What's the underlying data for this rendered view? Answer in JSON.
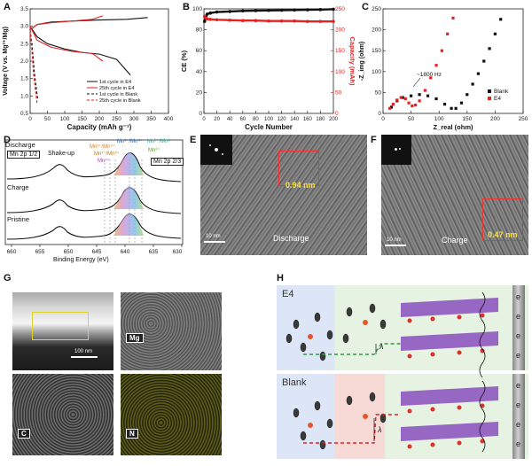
{
  "panels": {
    "A": {
      "letter": "A",
      "ylabel": "Voltage (V vs. Mg²⁺/Mg)",
      "xlabel": "Capacity (mAh g⁻¹)",
      "legend": [
        "1st cycle in E4",
        "25th cycle in E4",
        "1st cycle in Blank",
        "25th cycle in Blank"
      ]
    },
    "B": {
      "letter": "B",
      "ylabel_left": "CE (%)",
      "ylabel_right": "Capacity (mAh)",
      "xlabel": "Cycle Number"
    },
    "C": {
      "letter": "C",
      "ylabel": "-Z_img (ohm)",
      "xlabel": "Z_real (ohm)",
      "annotation": "~1800 Hz",
      "legend": [
        "Blank",
        "E4"
      ]
    },
    "D": {
      "letter": "D",
      "xlabel": "Binding Energy (eV)",
      "rows": [
        "Discharge",
        "Charge",
        "Pristine"
      ],
      "tag_left": "Mn 2p 1/2",
      "tag_right": "Mn 2p 2/3",
      "shakeup": "Shake-up",
      "peak_labels": [
        "Mn³⁺/Mn⁴⁺",
        "Mn²⁺/Mn³⁺",
        "Mn⁴⁺",
        "Mn³⁺/Mn⁴⁺",
        "Mn²⁺/Mn³⁺",
        "Mn²⁺"
      ]
    },
    "E": {
      "letter": "E",
      "d_spacing": "0.94 nm",
      "scale": "10 nm",
      "label": "Discharge"
    },
    "F": {
      "letter": "F",
      "d_spacing": "0.47 nm",
      "scale": "10 nm",
      "label": "Charge"
    },
    "G": {
      "letter": "G",
      "scale": "100 nm",
      "maps": [
        "Mg",
        "C",
        "N"
      ]
    },
    "H": {
      "letter": "H",
      "rows": [
        "E4",
        "Blank"
      ],
      "lambda": "λ",
      "electrode_label": "e"
    }
  },
  "colors": {
    "e4": "#e32222",
    "blank": "#111111",
    "accent_yellow": "#e0d22c"
  },
  "chart_data": [
    {
      "type": "line",
      "title": "",
      "xlabel": "Capacity (mAh g⁻¹)",
      "ylabel": "Voltage (V vs. Mg²⁺/Mg)",
      "xlim": [
        0,
        400
      ],
      "ylim": [
        0.5,
        3.5
      ],
      "xticks": [
        0,
        50,
        100,
        150,
        200,
        250,
        300,
        350,
        400
      ],
      "yticks": [
        0.5,
        1.0,
        1.5,
        2.0,
        2.5,
        3.0,
        3.5
      ],
      "series": [
        {
          "name": "1st cycle in E4",
          "color": "#111111",
          "style": "solid",
          "x": [
            0,
            20,
            50,
            100,
            150,
            200,
            250,
            290
          ],
          "y": [
            3.0,
            2.7,
            2.5,
            2.35,
            2.25,
            2.2,
            2.05,
            1.6
          ]
        },
        {
          "name": "1st cycle in E4 (charge)",
          "color": "#111111",
          "style": "solid",
          "x": [
            0,
            20,
            60,
            120,
            200,
            280,
            340
          ],
          "y": [
            2.9,
            3.05,
            3.12,
            3.15,
            3.18,
            3.2,
            3.25
          ]
        },
        {
          "name": "25th cycle in E4",
          "color": "#e32222",
          "style": "solid",
          "x": [
            0,
            20,
            60,
            120,
            180,
            210
          ],
          "y": [
            3.0,
            2.6,
            2.4,
            2.28,
            2.22,
            2.0
          ]
        },
        {
          "name": "25th cycle in E4 (charge)",
          "color": "#e32222",
          "style": "solid",
          "x": [
            0,
            20,
            60,
            120,
            180,
            210
          ],
          "y": [
            2.9,
            3.05,
            3.1,
            3.15,
            3.2,
            3.3
          ]
        },
        {
          "name": "1st cycle in Blank",
          "color": "#111111",
          "style": "dashed",
          "x": [
            0,
            6,
            12,
            18,
            22
          ],
          "y": [
            2.9,
            2.4,
            1.7,
            1.2,
            0.9
          ]
        },
        {
          "name": "25th cycle in Blank",
          "color": "#e32222",
          "style": "dashed",
          "x": [
            0,
            5,
            10,
            16,
            20
          ],
          "y": [
            2.9,
            2.3,
            1.6,
            1.1,
            0.8
          ]
        }
      ]
    },
    {
      "type": "scatter",
      "title": "",
      "xlabel": "Cycle Number",
      "ylabel_left": "CE (%)",
      "ylabel_right": "Capacity (mAh)",
      "xlim": [
        0,
        200
      ],
      "ylim_left": [
        0,
        100
      ],
      "ylim_right": [
        0,
        250
      ],
      "xticks": [
        0,
        20,
        40,
        60,
        80,
        100,
        120,
        140,
        160,
        180,
        200
      ],
      "yticks_left": [
        0,
        20,
        40,
        60,
        80,
        100
      ],
      "yticks_right": [
        0,
        50,
        100,
        150,
        200,
        250
      ],
      "series": [
        {
          "name": "CE",
          "axis": "left",
          "color": "#111111",
          "x": [
            1,
            3,
            5,
            10,
            20,
            40,
            60,
            80,
            100,
            120,
            140,
            160,
            180,
            200
          ],
          "y": [
            88,
            93,
            95,
            96,
            97,
            97.5,
            98,
            98.3,
            98.5,
            98.7,
            98.9,
            99.1,
            99.3,
            99.6
          ]
        },
        {
          "name": "Capacity",
          "axis": "right",
          "color": "#e32222",
          "x": [
            1,
            3,
            5,
            10,
            20,
            40,
            60,
            80,
            100,
            120,
            140,
            160,
            180,
            200
          ],
          "y": [
            232,
            228,
            226,
            225,
            224,
            223,
            222,
            222,
            221,
            221,
            221,
            220,
            220,
            220
          ]
        }
      ]
    },
    {
      "type": "scatter",
      "title": "",
      "xlabel": "Z_real (ohm)",
      "ylabel": "-Z_img (ohm)",
      "xlim": [
        0,
        250
      ],
      "ylim": [
        0,
        250
      ],
      "xticks": [
        0,
        50,
        100,
        150,
        200,
        250
      ],
      "yticks": [
        0,
        50,
        100,
        150,
        200,
        250
      ],
      "series": [
        {
          "name": "Blank",
          "color": "#111111",
          "x": [
            15,
            25,
            35,
            50,
            65,
            80,
            95,
            110,
            122,
            130,
            140,
            150,
            160,
            170,
            180,
            190,
            200,
            210
          ],
          "y": [
            15,
            30,
            38,
            42,
            45,
            42,
            35,
            22,
            12,
            12,
            25,
            45,
            70,
            95,
            125,
            155,
            190,
            225
          ]
        },
        {
          "name": "E4",
          "color": "#e32222",
          "x": [
            12,
            18,
            25,
            32,
            40,
            46,
            52,
            58,
            65,
            75,
            85,
            95,
            105,
            115,
            125
          ],
          "y": [
            12,
            22,
            32,
            38,
            35,
            25,
            18,
            20,
            30,
            55,
            85,
            115,
            150,
            190,
            228
          ]
        }
      ]
    }
  ]
}
